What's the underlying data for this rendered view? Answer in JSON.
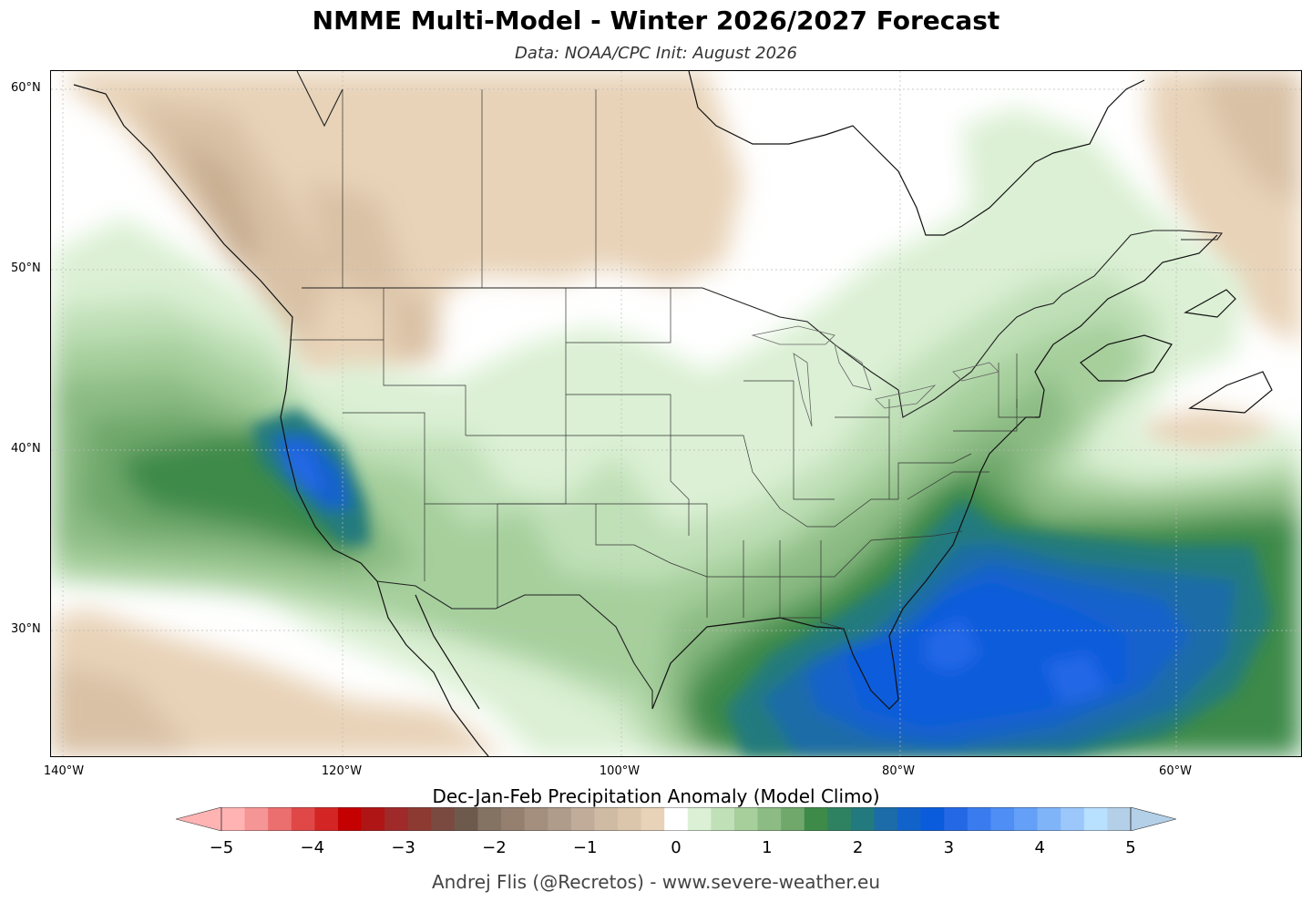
{
  "title": "NMME Multi-Model - Winter 2026/2027 Forecast",
  "subtitle": "Data: NOAA/CPC   Init: August 2026",
  "map": {
    "lat_labels": [
      "60°N",
      "50°N",
      "40°N",
      "30°N"
    ],
    "lon_labels": [
      "140°W",
      "120°W",
      "100°W",
      "80°W",
      "60°W"
    ]
  },
  "colorbar": {
    "title": "Dec-Jan-Feb Precipitation Anomaly (Model Climo)",
    "ticks": [
      "−5",
      "−4",
      "−3",
      "−2",
      "−1",
      "0",
      "1",
      "2",
      "3",
      "4",
      "5"
    ],
    "colors": [
      "#ffb3b3",
      "#f59595",
      "#ec6f6f",
      "#e04848",
      "#d42525",
      "#c40000",
      "#b01515",
      "#a02a2a",
      "#8c3a32",
      "#7a4a40",
      "#6e5a4c",
      "#847262",
      "#958070",
      "#a48f7e",
      "#b09c8b",
      "#c0ac98",
      "#cfbba4",
      "#dcc6ab",
      "#e8d3b8",
      "#ffffff",
      "#dbf0d4",
      "#c0e0b8",
      "#a6cf9c",
      "#8cbc84",
      "#70a86c",
      "#3e8a48",
      "#2e8262",
      "#237a7e",
      "#1b6ca8",
      "#1262cc",
      "#0b5cdc",
      "#2468e6",
      "#3a7cef",
      "#4f8ef4",
      "#64a0f7",
      "#80b4f8",
      "#9bc7fa",
      "#b8e0ff",
      "#b3d0e8"
    ],
    "ext_left_color": "#ffb3b3",
    "ext_right_color": "#b3d0e8"
  },
  "credit": "Andrej Flis (@Recretos) - www.severe-weather.eu"
}
